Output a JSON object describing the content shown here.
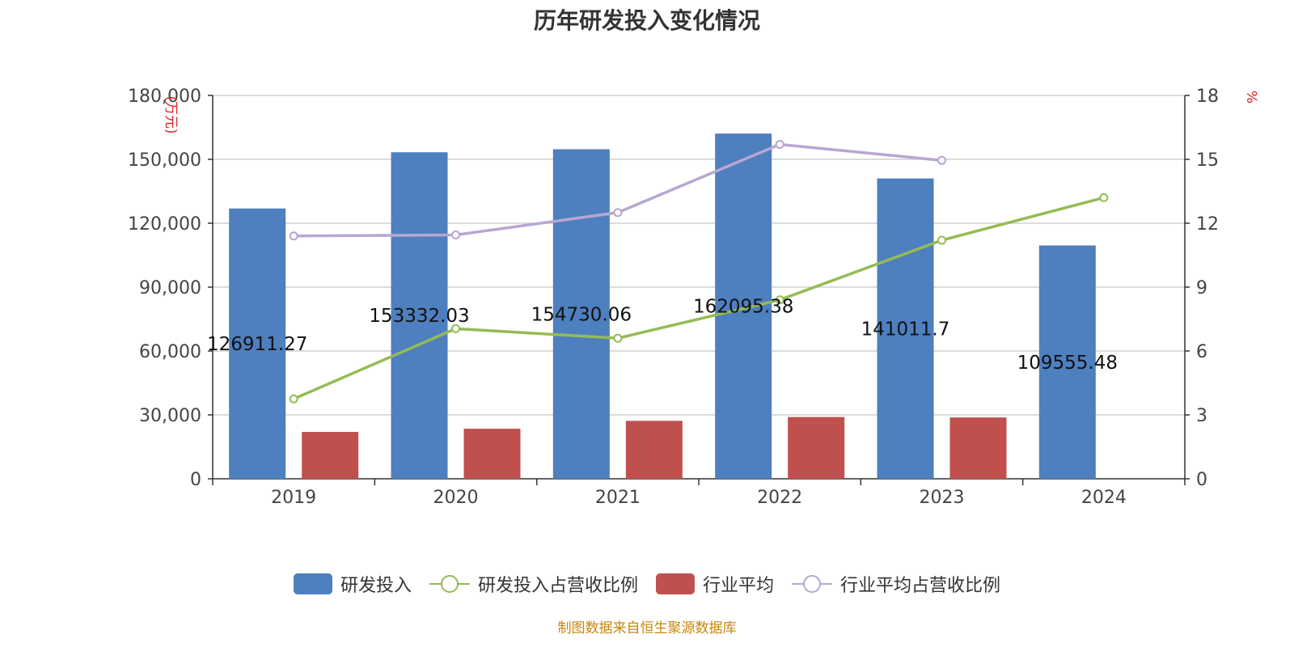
{
  "title": "历年研发投入变化情况",
  "source": "制图数据来自恒生聚源数据库",
  "colors": {
    "rd_invest": "#4e7fbf",
    "rd_ratio": "#95bb55",
    "industry_avg": "#c0504d",
    "industry_ratio": "#b7a7d2",
    "axis_unit": "#e02020"
  },
  "legend": {
    "items": [
      {
        "label": "研发投入",
        "kind": "bar",
        "color": "#4e7fbf"
      },
      {
        "label": "研发投入占营收比例",
        "kind": "line",
        "color": "#95bb55"
      },
      {
        "label": "行业平均",
        "kind": "bar",
        "color": "#c0504d"
      },
      {
        "label": "行业平均占营收比例",
        "kind": "line",
        "color": "#b7a7d2"
      }
    ]
  },
  "chart_data": {
    "type": "bar",
    "categories": [
      "2019",
      "2020",
      "2021",
      "2022",
      "2023",
      "2024"
    ],
    "y_left": {
      "unit": "(万元)",
      "range": [
        0,
        180000
      ],
      "ticks": [
        0,
        30000,
        60000,
        90000,
        120000,
        150000,
        180000
      ],
      "tick_labels": [
        "0",
        "30,000",
        "60,000",
        "90,000",
        "120,000",
        "150,000",
        "180,000"
      ]
    },
    "y_right": {
      "unit": "%",
      "range": [
        0,
        18
      ],
      "ticks": [
        0,
        3,
        6,
        9,
        12,
        15,
        18
      ],
      "tick_labels": [
        "0",
        "3",
        "6",
        "9",
        "12",
        "15",
        "18"
      ]
    },
    "grid": true,
    "legend_position": "bottom",
    "series": [
      {
        "name": "研发投入",
        "type": "bar",
        "axis": "left",
        "values": [
          126911.27,
          153332.03,
          154730.06,
          162095.38,
          141011.7,
          109555.48
        ],
        "labels": [
          "126911.27",
          "153332.03",
          "154730.06",
          "162095.38",
          "141011.7",
          "109555.48"
        ]
      },
      {
        "name": "行业平均",
        "type": "bar",
        "axis": "left",
        "values": [
          22000,
          23500,
          27200,
          29000,
          28800,
          null
        ]
      },
      {
        "name": "研发投入占营收比例",
        "type": "line",
        "axis": "right",
        "values": [
          3.75,
          7.05,
          6.6,
          8.4,
          11.2,
          13.2
        ]
      },
      {
        "name": "行业平均占营收比例",
        "type": "line",
        "axis": "right",
        "values": [
          11.4,
          11.45,
          12.5,
          15.7,
          14.95,
          null
        ]
      }
    ]
  }
}
